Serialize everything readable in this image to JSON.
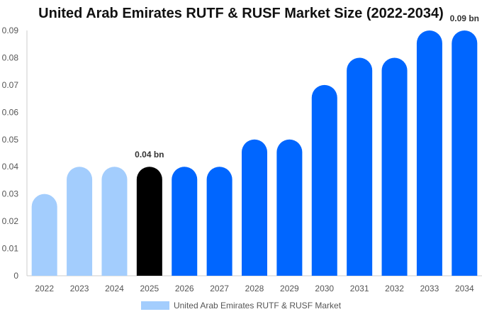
{
  "chart_data": {
    "type": "bar",
    "title": "United Arab Emirates RUTF & RUSF Market Size (2022-2034)",
    "categories": [
      "2022",
      "2023",
      "2024",
      "2025",
      "2026",
      "2027",
      "2028",
      "2029",
      "2030",
      "2031",
      "2032",
      "2033",
      "2034"
    ],
    "series": [
      {
        "name": "United Arab Emirates RUTF & RUSF Market",
        "values": [
          0.03,
          0.04,
          0.04,
          0.04,
          0.04,
          0.04,
          0.05,
          0.05,
          0.07,
          0.08,
          0.08,
          0.09,
          0.09
        ]
      }
    ],
    "ylim": [
      0,
      0.09
    ],
    "yticks": [
      "0",
      "0.01",
      "0.02",
      "0.03",
      "0.04",
      "0.05",
      "0.06",
      "0.07",
      "0.08",
      "0.09"
    ],
    "data_labels": [
      {
        "category": "2025",
        "text": "0.04 bn"
      },
      {
        "category": "2034",
        "text": "0.09 bn"
      }
    ],
    "colors": {
      "historical": "#a3cdfd",
      "base_year": "#000000",
      "forecast": "#0066ff",
      "legend": "#a3cdfd"
    },
    "grid": false,
    "legend_position": "bottom"
  }
}
